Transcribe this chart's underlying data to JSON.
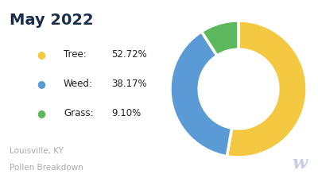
{
  "title": "May 2022",
  "subtitle_line1": "Louisville, KY",
  "subtitle_line2": "Pollen Breakdown",
  "categories": [
    "Tree",
    "Weed",
    "Grass"
  ],
  "values": [
    52.72,
    38.17,
    9.1
  ],
  "labels": [
    "52.72%",
    "38.17%",
    "9.10%"
  ],
  "colors": [
    "#F5C842",
    "#5B9BD5",
    "#5CB85C"
  ],
  "title_color": "#1a2e4a",
  "subtitle_color": "#aaaaaa",
  "background_color": "#ffffff",
  "wedge_edge_color": "#ffffff",
  "donut_width": 0.42,
  "start_angle": 90,
  "watermark_color": "#c5cfe8"
}
